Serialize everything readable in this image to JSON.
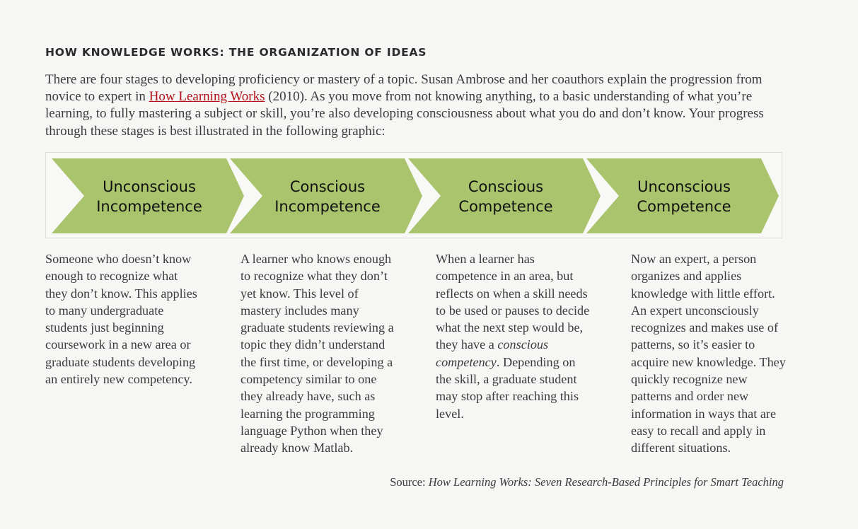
{
  "heading": "HOW KNOWLEDGE WORKS: THE ORGANIZATION OF IDEAS",
  "intro": {
    "before_link": "There are four stages to developing proficiency or mastery of a topic. Susan Ambrose and her coauthors explain the progression from novice to expert in ",
    "link_text": "How Learning Works",
    "after_link": " (2010). As you move from not knowing anything, to a basic understanding of what you’re learning, to fully mastering a subject or skill, you’re also developing consciousness about what you do and don’t know. Your progress through these stages is best illustrated in the following graphic:"
  },
  "colors": {
    "chevron_fill": "#a9c46c",
    "link": "#b3111a",
    "background": "#f6f6f4"
  },
  "stages": [
    {
      "line1": "Unconscious",
      "line2": "Incompetence",
      "description": "Someone who doesn’t know enough to recognize what they don’t know. This applies to many undergraduate students just beginning coursework in a new area or graduate students developing an entirely new competency."
    },
    {
      "line1": "Conscious",
      "line2": "Incompetence",
      "description": "A learner who knows enough to recognize what they don’t yet know. This level of mastery includes many graduate students reviewing a topic they didn’t understand the first time, or developing a competency similar to one they already have, such as learning the programming language Python when they already know Matlab."
    },
    {
      "line1": "Conscious",
      "line2": "Competence",
      "description_before": "When a learner has competence in an area, but reflects on when a skill needs to be used or pauses to decide what the next step would be, they have a ",
      "description_em": "conscious competency",
      "description_after": ". Depending on the skill, a graduate student may stop after reaching this level."
    },
    {
      "line1": "Unconscious",
      "line2": "Competence",
      "description": "Now an expert, a person organizes and applies knowledge with little effort. An expert unconsciously recognizes and makes use of patterns, so it’s easier to acquire new knowledge. They quickly recognize new patterns and order new information in ways that are easy to recall and apply in different situations."
    }
  ],
  "source": {
    "prefix": "Source: ",
    "title": "How Learning Works: Seven Research-Based Principles for Smart Teaching"
  }
}
